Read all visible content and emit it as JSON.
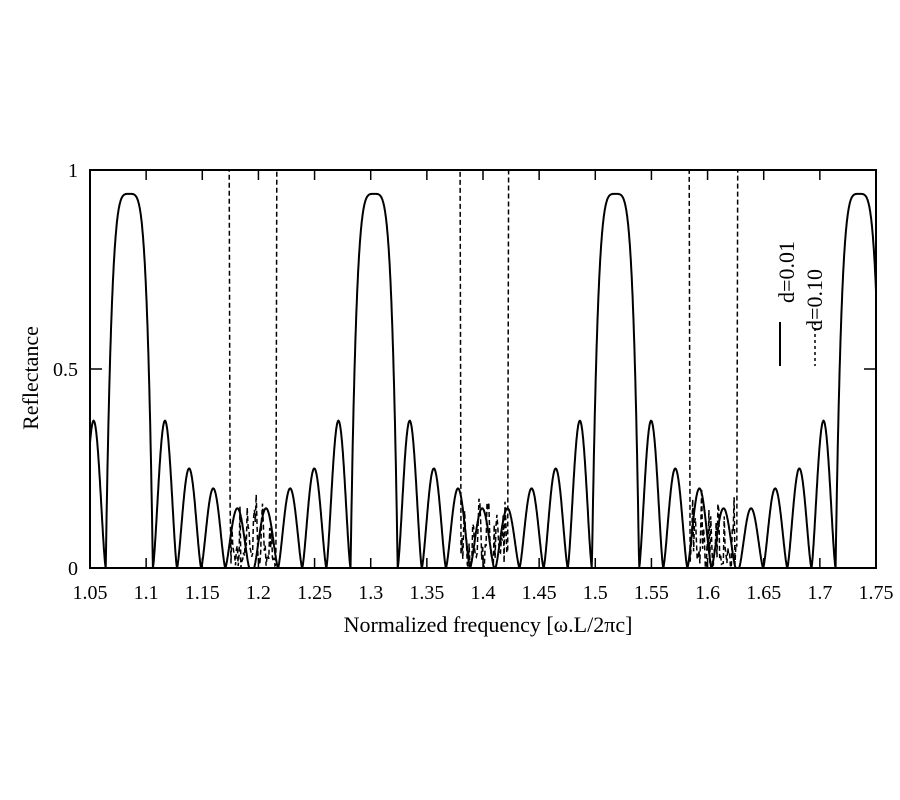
{
  "chart_data": {
    "type": "line",
    "title": "",
    "xlabel": "Normalized frequency [ω.L/2πc]",
    "ylabel": "Reflectance",
    "xlim": [
      1.05,
      1.75
    ],
    "ylim": [
      0,
      1
    ],
    "x_ticks": [
      "1.05",
      "1.1",
      "1.15",
      "1.2",
      "1.25",
      "1.3",
      "1.35",
      "1.4",
      "1.45",
      "1.5",
      "1.55",
      "1.6",
      "1.65",
      "1.7",
      "1.75"
    ],
    "y_ticks": [
      "0",
      "0.5",
      "1"
    ],
    "grid": false,
    "legend": {
      "placement": "right, rotated"
    },
    "series": [
      {
        "name": "d=0.01",
        "style": "solid",
        "band_centers": [
          1.085,
          1.303,
          1.518,
          1.735
        ],
        "band_peak": 0.94,
        "band_halfwidth": 0.021,
        "sidelobe_peaks": [
          0.37,
          0.25,
          0.2,
          0.15
        ],
        "sidelobe_spacing": 0.0215
      },
      {
        "name": "d=0.10",
        "style": "dashed",
        "plateau_value": 1.0,
        "stopbands": [
          [
            1.05,
            1.174
          ],
          [
            1.216,
            1.38
          ],
          [
            1.422,
            1.584
          ],
          [
            1.626,
            1.75
          ]
        ],
        "noise_level": 0.2
      }
    ]
  }
}
